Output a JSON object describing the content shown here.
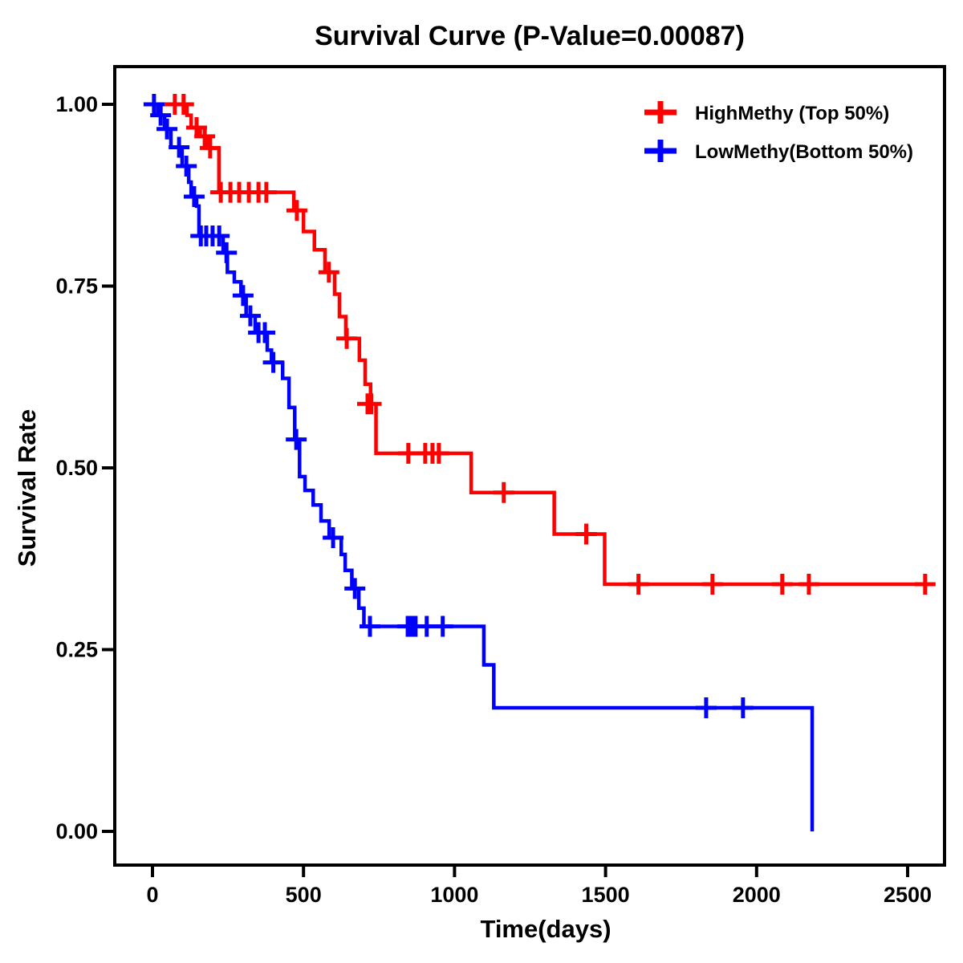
{
  "chart_data": {
    "type": "line",
    "subtype": "kaplan-meier-step-curve",
    "title": "Survival Curve (P-Value=0.00087)",
    "p_value": "0.00087",
    "xlabel": "Time(days)",
    "ylabel": "Survival Rate",
    "xlim": [
      -125,
      2620
    ],
    "ylim": [
      -0.05,
      1.05
    ],
    "grid": false,
    "legend_position": "top-right-inside",
    "x_ticks": [
      {
        "value": 0,
        "label": "0"
      },
      {
        "value": 500,
        "label": "500"
      },
      {
        "value": 1000,
        "label": "1000"
      },
      {
        "value": 1500,
        "label": "1500"
      },
      {
        "value": 2000,
        "label": "2000"
      },
      {
        "value": 2500,
        "label": "2500"
      }
    ],
    "y_ticks": [
      {
        "value": 0.0,
        "label": "0.00"
      },
      {
        "value": 0.25,
        "label": "0.25"
      },
      {
        "value": 0.5,
        "label": "0.50"
      },
      {
        "value": 0.75,
        "label": "0.75"
      },
      {
        "value": 1.0,
        "label": "1.00"
      }
    ],
    "series": [
      {
        "name": "HighMethy (Top 50%)",
        "color": "#FF0000",
        "end_time": 2590,
        "steps": [
          [
            0,
            1.0
          ],
          [
            114,
            0.985
          ],
          [
            128,
            0.968
          ],
          [
            158,
            0.956
          ],
          [
            185,
            0.94
          ],
          [
            220,
            0.879
          ],
          [
            468,
            0.854
          ],
          [
            500,
            0.825
          ],
          [
            536,
            0.8
          ],
          [
            571,
            0.769
          ],
          [
            603,
            0.739
          ],
          [
            619,
            0.708
          ],
          [
            640,
            0.678
          ],
          [
            685,
            0.648
          ],
          [
            704,
            0.615
          ],
          [
            722,
            0.588
          ],
          [
            740,
            0.52
          ],
          [
            1055,
            0.466
          ],
          [
            1330,
            0.409
          ],
          [
            1497,
            0.34
          ]
        ],
        "censors": [
          [
            74,
            1.0
          ],
          [
            103,
            1.0
          ],
          [
            146,
            0.968
          ],
          [
            173,
            0.956
          ],
          [
            191,
            0.94
          ],
          [
            226,
            0.879
          ],
          [
            258,
            0.879
          ],
          [
            287,
            0.879
          ],
          [
            319,
            0.879
          ],
          [
            351,
            0.879
          ],
          [
            377,
            0.879
          ],
          [
            478,
            0.854
          ],
          [
            584,
            0.769
          ],
          [
            643,
            0.678
          ],
          [
            712,
            0.588
          ],
          [
            724,
            0.588
          ],
          [
            847,
            0.52
          ],
          [
            903,
            0.52
          ],
          [
            927,
            0.52
          ],
          [
            948,
            0.52
          ],
          [
            1163,
            0.466
          ],
          [
            1436,
            0.409
          ],
          [
            1609,
            0.34
          ],
          [
            1854,
            0.34
          ],
          [
            2085,
            0.34
          ],
          [
            2173,
            0.34
          ],
          [
            2558,
            0.34
          ]
        ]
      },
      {
        "name": "LowMethy(Bottom 50%)",
        "color": "#0000FF",
        "end_time": 2184,
        "steps": [
          [
            0,
            1.0
          ],
          [
            18,
            0.985
          ],
          [
            40,
            0.966
          ],
          [
            61,
            0.941
          ],
          [
            98,
            0.915
          ],
          [
            120,
            0.893
          ],
          [
            128,
            0.873
          ],
          [
            146,
            0.86
          ],
          [
            154,
            0.819
          ],
          [
            234,
            0.796
          ],
          [
            248,
            0.769
          ],
          [
            271,
            0.756
          ],
          [
            293,
            0.737
          ],
          [
            310,
            0.709
          ],
          [
            340,
            0.686
          ],
          [
            380,
            0.662
          ],
          [
            394,
            0.645
          ],
          [
            431,
            0.623
          ],
          [
            452,
            0.583
          ],
          [
            471,
            0.539
          ],
          [
            487,
            0.488
          ],
          [
            505,
            0.469
          ],
          [
            532,
            0.449
          ],
          [
            558,
            0.427
          ],
          [
            585,
            0.404
          ],
          [
            625,
            0.381
          ],
          [
            638,
            0.359
          ],
          [
            660,
            0.334
          ],
          [
            683,
            0.307
          ],
          [
            700,
            0.282
          ],
          [
            1097,
            0.229
          ],
          [
            1130,
            0.17
          ],
          [
            2184,
            0.0
          ]
        ],
        "censors": [
          [
            5,
            1.0
          ],
          [
            27,
            0.985
          ],
          [
            48,
            0.966
          ],
          [
            88,
            0.941
          ],
          [
            112,
            0.915
          ],
          [
            138,
            0.873
          ],
          [
            160,
            0.819
          ],
          [
            178,
            0.819
          ],
          [
            199,
            0.819
          ],
          [
            221,
            0.819
          ],
          [
            245,
            0.796
          ],
          [
            300,
            0.737
          ],
          [
            324,
            0.709
          ],
          [
            351,
            0.686
          ],
          [
            372,
            0.686
          ],
          [
            400,
            0.645
          ],
          [
            476,
            0.539
          ],
          [
            598,
            0.404
          ],
          [
            670,
            0.334
          ],
          [
            720,
            0.282
          ],
          [
            845,
            0.282
          ],
          [
            858,
            0.282
          ],
          [
            871,
            0.282
          ],
          [
            908,
            0.282
          ],
          [
            961,
            0.282
          ],
          [
            1833,
            0.17
          ],
          [
            1955,
            0.17
          ]
        ]
      }
    ],
    "axis_color": "#000000",
    "background_color": "#FFFFFF"
  }
}
